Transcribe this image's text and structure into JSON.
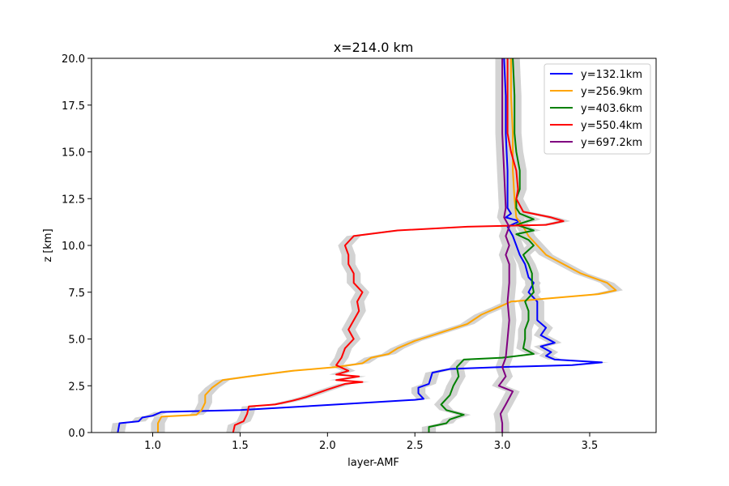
{
  "chart_data": {
    "type": "line",
    "title": "x=214.0 km",
    "xlabel": "layer-AMF",
    "ylabel": "z [km]",
    "xlim": [
      0.65,
      3.88
    ],
    "ylim": [
      0,
      20
    ],
    "xticks": [
      1.0,
      1.5,
      2.0,
      2.5,
      3.0,
      3.5
    ],
    "xtick_labels": [
      "1.0",
      "1.5",
      "2.0",
      "2.5",
      "3.0",
      "3.5"
    ],
    "yticks": [
      0,
      2.5,
      5,
      7.5,
      10,
      12.5,
      15,
      17.5,
      20
    ],
    "ytick_labels": [
      "0.0",
      "2.5",
      "5.0",
      "7.5",
      "10.0",
      "12.5",
      "15.0",
      "17.5",
      "20.0"
    ],
    "grid": false,
    "legend": "top-right",
    "uncertainty_band": {
      "color": "#d3d3d3",
      "halfwidth": 0.04
    },
    "series": [
      {
        "name": "y=132.1km",
        "color": "#0000ff",
        "points": [
          [
            0.8,
            0
          ],
          [
            0.81,
            0.5
          ],
          [
            0.92,
            0.6
          ],
          [
            0.94,
            0.8
          ],
          [
            1.0,
            0.9
          ],
          [
            1.05,
            1.1
          ],
          [
            1.5,
            1.2
          ],
          [
            2.05,
            1.5
          ],
          [
            2.5,
            1.75
          ],
          [
            2.55,
            1.8
          ],
          [
            2.52,
            2.1
          ],
          [
            2.52,
            2.4
          ],
          [
            2.58,
            2.6
          ],
          [
            2.6,
            3.2
          ],
          [
            2.7,
            3.4
          ],
          [
            3.0,
            3.5
          ],
          [
            3.4,
            3.6
          ],
          [
            3.57,
            3.75
          ],
          [
            3.3,
            3.9
          ],
          [
            3.25,
            4.1
          ],
          [
            3.28,
            4.3
          ],
          [
            3.22,
            4.6
          ],
          [
            3.3,
            4.8
          ],
          [
            3.22,
            5.2
          ],
          [
            3.25,
            5.6
          ],
          [
            3.2,
            6.0
          ],
          [
            3.2,
            7.0
          ],
          [
            3.15,
            7.5
          ],
          [
            3.18,
            8.0
          ],
          [
            3.15,
            8.3
          ],
          [
            3.13,
            9.0
          ],
          [
            3.1,
            9.5
          ],
          [
            3.08,
            10.0
          ],
          [
            3.06,
            10.5
          ],
          [
            3.03,
            11.0
          ],
          [
            3.1,
            11.3
          ],
          [
            3.02,
            11.5
          ],
          [
            3.05,
            11.7
          ],
          [
            3.03,
            12.0
          ],
          [
            3.03,
            14.0
          ],
          [
            3.02,
            16.0
          ],
          [
            3.02,
            18.0
          ],
          [
            3.01,
            20.0
          ]
        ]
      },
      {
        "name": "y=256.9km",
        "color": "#ffa500",
        "points": [
          [
            1.03,
            0
          ],
          [
            1.03,
            0.5
          ],
          [
            1.05,
            0.85
          ],
          [
            1.25,
            0.95
          ],
          [
            1.28,
            1.2
          ],
          [
            1.3,
            1.6
          ],
          [
            1.3,
            2.0
          ],
          [
            1.34,
            2.4
          ],
          [
            1.4,
            2.8
          ],
          [
            1.55,
            3.0
          ],
          [
            1.8,
            3.3
          ],
          [
            2.05,
            3.5
          ],
          [
            2.2,
            3.7
          ],
          [
            2.25,
            4.0
          ],
          [
            2.35,
            4.2
          ],
          [
            2.4,
            4.5
          ],
          [
            2.5,
            4.9
          ],
          [
            2.6,
            5.2
          ],
          [
            2.7,
            5.5
          ],
          [
            2.8,
            5.8
          ],
          [
            2.88,
            6.3
          ],
          [
            2.98,
            6.7
          ],
          [
            3.05,
            7.0
          ],
          [
            3.3,
            7.2
          ],
          [
            3.55,
            7.4
          ],
          [
            3.65,
            7.6
          ],
          [
            3.6,
            8.0
          ],
          [
            3.45,
            8.5
          ],
          [
            3.35,
            9.0
          ],
          [
            3.25,
            9.5
          ],
          [
            3.2,
            10.0
          ],
          [
            3.15,
            10.5
          ],
          [
            3.12,
            11.0
          ],
          [
            3.08,
            11.5
          ],
          [
            3.07,
            12.5
          ],
          [
            3.06,
            14.0
          ],
          [
            3.06,
            16.0
          ],
          [
            3.05,
            18.0
          ],
          [
            3.05,
            20.0
          ]
        ]
      },
      {
        "name": "y=403.6km",
        "color": "#008000",
        "points": [
          [
            2.58,
            0
          ],
          [
            2.58,
            0.3
          ],
          [
            2.68,
            0.5
          ],
          [
            2.7,
            0.7
          ],
          [
            2.78,
            0.95
          ],
          [
            2.68,
            1.2
          ],
          [
            2.65,
            1.5
          ],
          [
            2.7,
            2.0
          ],
          [
            2.72,
            2.5
          ],
          [
            2.75,
            3.0
          ],
          [
            2.74,
            3.5
          ],
          [
            2.78,
            3.9
          ],
          [
            3.0,
            4.0
          ],
          [
            3.18,
            4.2
          ],
          [
            3.12,
            4.5
          ],
          [
            3.13,
            5.0
          ],
          [
            3.13,
            5.5
          ],
          [
            3.15,
            6.0
          ],
          [
            3.15,
            6.5
          ],
          [
            3.13,
            7.0
          ],
          [
            3.18,
            7.5
          ],
          [
            3.17,
            8.0
          ],
          [
            3.17,
            8.5
          ],
          [
            3.15,
            9.0
          ],
          [
            3.12,
            9.5
          ],
          [
            3.18,
            10.0
          ],
          [
            3.15,
            10.3
          ],
          [
            3.08,
            10.6
          ],
          [
            3.18,
            10.8
          ],
          [
            3.08,
            11.1
          ],
          [
            3.18,
            11.4
          ],
          [
            3.1,
            11.7
          ],
          [
            3.08,
            12.0
          ],
          [
            3.08,
            12.5
          ],
          [
            3.1,
            13.0
          ],
          [
            3.1,
            14.0
          ],
          [
            3.08,
            15.0
          ],
          [
            3.07,
            16.0
          ],
          [
            3.07,
            18.0
          ],
          [
            3.06,
            20.0
          ]
        ]
      },
      {
        "name": "y=550.4km",
        "color": "#ff0000",
        "points": [
          [
            1.46,
            0
          ],
          [
            1.47,
            0.4
          ],
          [
            1.52,
            0.6
          ],
          [
            1.54,
            1.0
          ],
          [
            1.55,
            1.4
          ],
          [
            1.7,
            1.5
          ],
          [
            1.8,
            1.7
          ],
          [
            1.88,
            1.9
          ],
          [
            2.0,
            2.3
          ],
          [
            2.1,
            2.6
          ],
          [
            2.2,
            2.7
          ],
          [
            2.05,
            2.8
          ],
          [
            2.18,
            3.0
          ],
          [
            2.05,
            3.1
          ],
          [
            2.12,
            3.3
          ],
          [
            2.05,
            3.6
          ],
          [
            2.08,
            4.0
          ],
          [
            2.1,
            4.5
          ],
          [
            2.15,
            5.0
          ],
          [
            2.12,
            5.5
          ],
          [
            2.15,
            6.0
          ],
          [
            2.18,
            6.5
          ],
          [
            2.17,
            7.0
          ],
          [
            2.2,
            7.5
          ],
          [
            2.15,
            8.0
          ],
          [
            2.15,
            8.5
          ],
          [
            2.12,
            9.0
          ],
          [
            2.12,
            9.5
          ],
          [
            2.1,
            10.0
          ],
          [
            2.15,
            10.5
          ],
          [
            2.4,
            10.8
          ],
          [
            2.8,
            11.0
          ],
          [
            3.25,
            11.1
          ],
          [
            3.35,
            11.3
          ],
          [
            3.28,
            11.5
          ],
          [
            3.12,
            11.8
          ],
          [
            3.08,
            12.5
          ],
          [
            3.09,
            13.0
          ],
          [
            3.08,
            14.0
          ],
          [
            3.05,
            15.0
          ],
          [
            3.03,
            16.0
          ],
          [
            3.03,
            18.0
          ],
          [
            3.03,
            20.0
          ]
        ]
      },
      {
        "name": "y=697.2km",
        "color": "#800080",
        "points": [
          [
            3.0,
            0
          ],
          [
            3.0,
            0.5
          ],
          [
            2.99,
            1.0
          ],
          [
            3.02,
            1.5
          ],
          [
            3.06,
            2.2
          ],
          [
            2.98,
            2.5
          ],
          [
            3.02,
            3.0
          ],
          [
            3.0,
            3.5
          ],
          [
            3.02,
            4.0
          ],
          [
            3.03,
            5.0
          ],
          [
            3.04,
            6.0
          ],
          [
            3.03,
            7.0
          ],
          [
            3.04,
            8.0
          ],
          [
            3.04,
            9.0
          ],
          [
            3.02,
            9.5
          ],
          [
            3.04,
            10.0
          ],
          [
            3.02,
            10.5
          ],
          [
            3.04,
            11.0
          ],
          [
            3.01,
            11.5
          ],
          [
            3.02,
            12.0
          ],
          [
            3.01,
            14.0
          ],
          [
            3.0,
            16.0
          ],
          [
            3.0,
            18.0
          ],
          [
            3.0,
            20.0
          ]
        ]
      }
    ]
  }
}
